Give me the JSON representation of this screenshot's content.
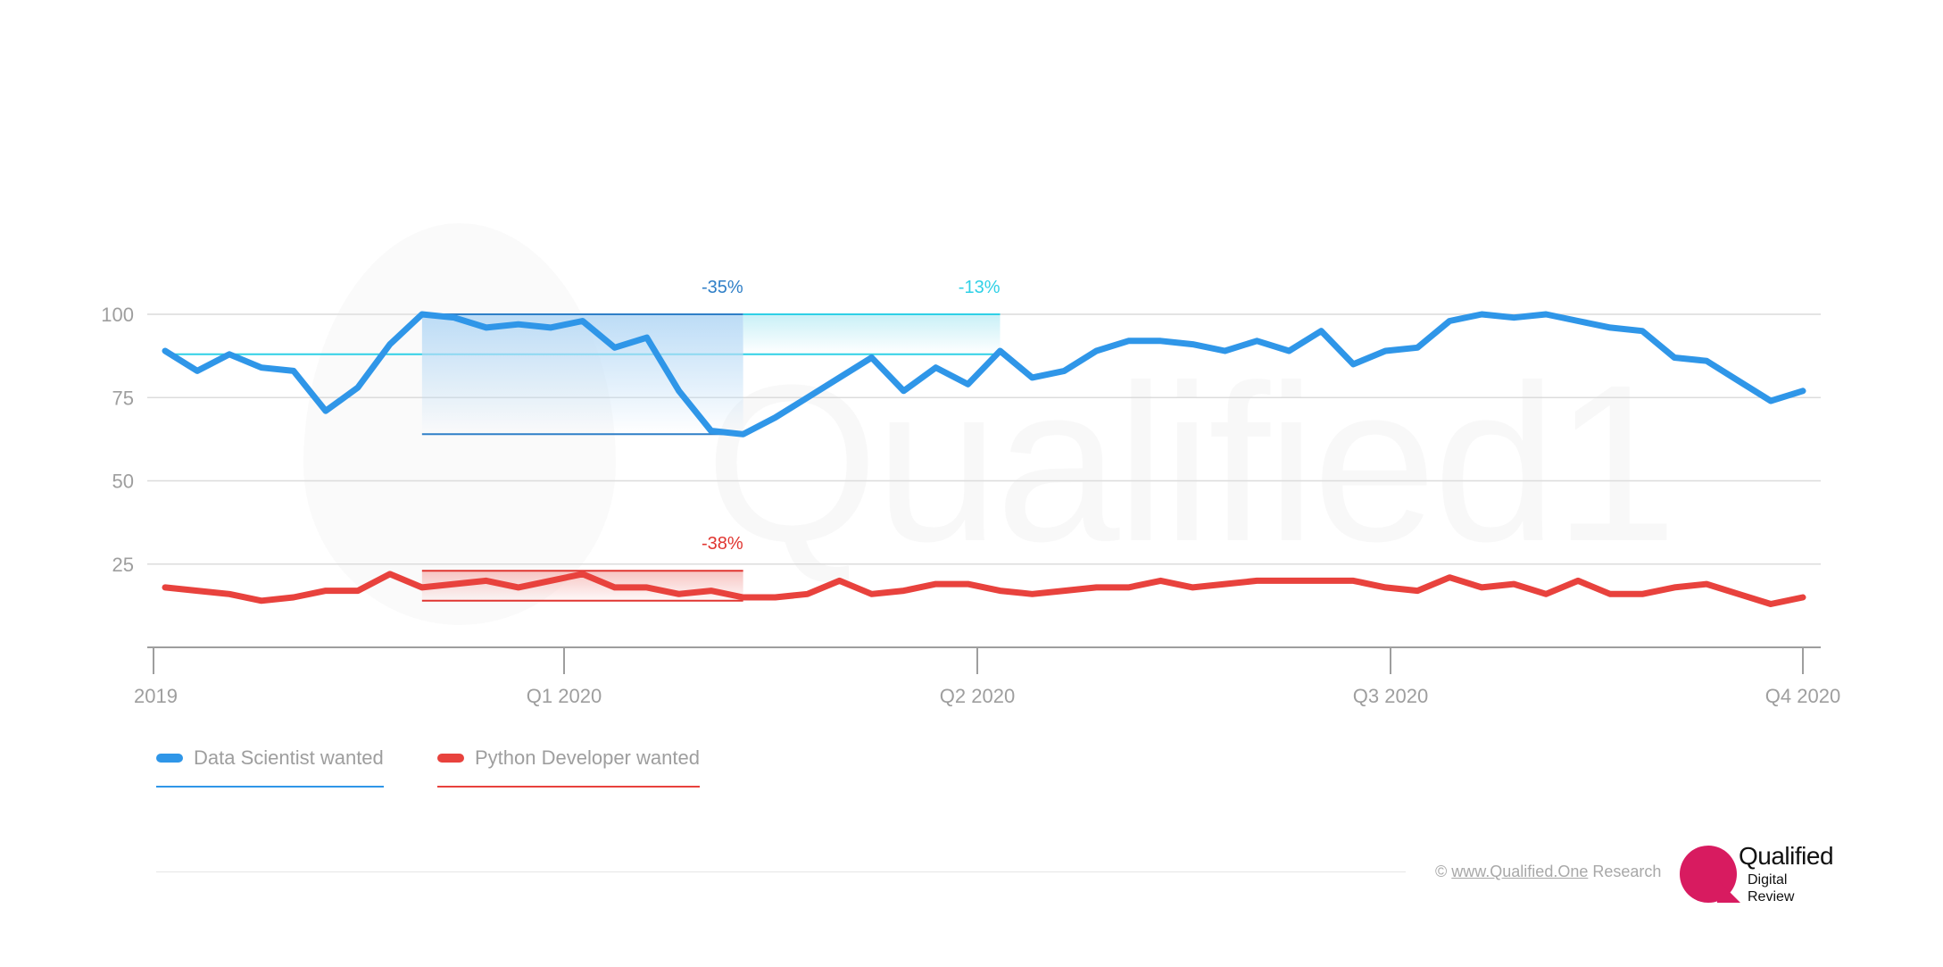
{
  "chart_data": {
    "type": "line",
    "title": "",
    "xlabel": "",
    "ylabel": "",
    "ylim": [
      0,
      100
    ],
    "y_ticks": [
      25,
      50,
      75,
      100
    ],
    "x_ticks": [
      "2019",
      "Q1 2020",
      "Q2 2020",
      "Q3 2020",
      "Q4 2020"
    ],
    "grid": true,
    "legend": "bottom-left",
    "series": [
      {
        "name": "Data Scientist wanted",
        "color": "#2f96e8",
        "values": [
          89,
          83,
          88,
          84,
          83,
          71,
          78,
          91,
          100,
          99,
          96,
          97,
          96,
          98,
          90,
          93,
          77,
          65,
          64,
          69,
          75,
          81,
          87,
          77,
          84,
          79,
          89,
          81,
          83,
          89,
          92,
          92,
          91,
          89,
          92,
          89,
          95,
          85,
          89,
          90,
          98,
          100,
          99,
          100,
          98,
          96,
          95,
          87,
          86,
          80,
          74,
          77
        ]
      },
      {
        "name": "Python Developer wanted",
        "color": "#e8423d",
        "values": [
          18,
          17,
          16,
          14,
          15,
          17,
          17,
          22,
          18,
          19,
          20,
          18,
          20,
          22,
          18,
          18,
          16,
          17,
          15,
          15,
          16,
          20,
          16,
          17,
          19,
          19,
          17,
          16,
          17,
          18,
          18,
          20,
          18,
          19,
          20,
          20,
          20,
          20,
          18,
          17,
          21,
          18,
          19,
          16,
          20,
          16,
          16,
          18,
          19,
          16,
          13,
          15
        ]
      }
    ],
    "annotations": [
      {
        "label": "-35%",
        "color": "#2f7fc7",
        "series": 0,
        "from_index": 8,
        "to_index": 18,
        "top": 100,
        "bottom": 64
      },
      {
        "label": "-13%",
        "color": "#2fd0e6",
        "series": 0,
        "from_index": 18,
        "to_index": 26,
        "top": 100,
        "reference": 88
      },
      {
        "label": "-38%",
        "color": "#e03530",
        "series": 1,
        "from_index": 8,
        "to_index": 18,
        "top": 23,
        "bottom": 14
      }
    ],
    "reference_line": {
      "value": 88,
      "color": "#2fd0e6"
    }
  },
  "legend": {
    "items": [
      {
        "label": "Data Scientist wanted",
        "color": "#2f96e8"
      },
      {
        "label": "Python Developer wanted",
        "color": "#e8423d"
      }
    ]
  },
  "footer": {
    "copyright": "©",
    "link_text": "www.Qualified.One",
    "suffix": "Research"
  },
  "logo": {
    "name": "Qualified",
    "line1": "Digital",
    "line2": "Review",
    "brand_color": "#d81b60"
  },
  "watermark": "Qualified1"
}
